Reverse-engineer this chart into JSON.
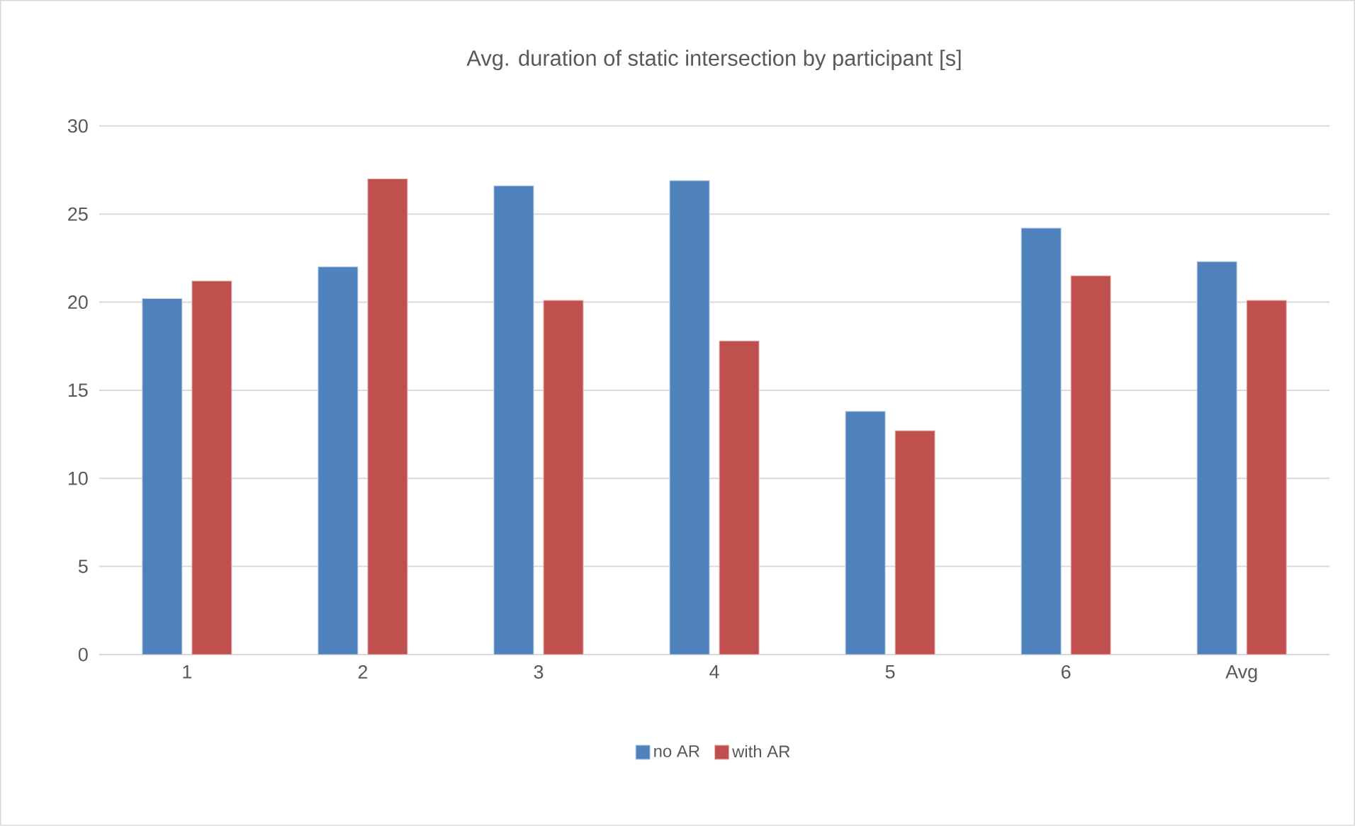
{
  "chart_data": {
    "type": "bar",
    "title": "Avg. duration of static intersection by participant [s]",
    "categories": [
      "1",
      "2",
      "3",
      "4",
      "5",
      "6",
      "Avg"
    ],
    "series": [
      {
        "name": "no AR",
        "color": "#4f81bd",
        "values": [
          20.2,
          22.0,
          26.6,
          26.9,
          13.8,
          24.2,
          22.3
        ]
      },
      {
        "name": "with AR",
        "color": "#c0504d",
        "values": [
          21.2,
          27.0,
          20.1,
          17.8,
          12.7,
          21.5,
          20.1
        ]
      }
    ],
    "ylim": [
      0,
      30
    ],
    "yticks": [
      0,
      5,
      10,
      15,
      20,
      25,
      30
    ],
    "grid": "y",
    "legend": "bottom"
  }
}
